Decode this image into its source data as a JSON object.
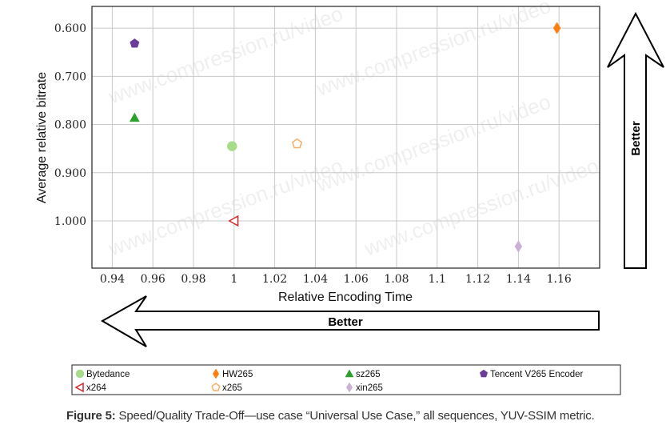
{
  "chart_data": {
    "type": "scatter",
    "xlabel": "Relative Encoding Time",
    "ylabel": "Average relative bitrate",
    "xlim": [
      0.93,
      1.18
    ],
    "ylim": [
      0.555,
      1.098
    ],
    "y_inverted": true,
    "grid": true,
    "x_ticks": [
      "0.94",
      "0.96",
      "0.98",
      "1",
      "1.02",
      "1.04",
      "1.06",
      "1.08",
      "1.1",
      "1.12",
      "1.14",
      "1.16"
    ],
    "x_tick_values": [
      0.94,
      0.96,
      0.98,
      1,
      1.02,
      1.04,
      1.06,
      1.08,
      1.1,
      1.12,
      1.14,
      1.16
    ],
    "y_ticks": [
      "0.600",
      "0.700",
      "0.800",
      "0.900",
      "1.000"
    ],
    "y_tick_values": [
      0.6,
      0.7,
      0.8,
      0.9,
      1.0
    ],
    "legend_placement": "bottom",
    "series": [
      {
        "name": "Bytedance",
        "marker": "circle",
        "color": "#a6dc8a",
        "filled": true,
        "x": 0.999,
        "y": 0.845
      },
      {
        "name": "HW265",
        "marker": "diamond",
        "color": "#ff7f0e",
        "filled": true,
        "x": 1.159,
        "y": 0.6
      },
      {
        "name": "sz265",
        "marker": "triangle-up",
        "color": "#2ca02c",
        "filled": true,
        "x": 0.951,
        "y": 0.786
      },
      {
        "name": "Tencent V265 Encoder",
        "marker": "pentagon",
        "color": "#6a3d9a",
        "filled": true,
        "x": 0.951,
        "y": 0.632
      },
      {
        "name": "x264",
        "marker": "triangle-left",
        "color": "#d62728",
        "filled": false,
        "x": 1.0,
        "y": 1.0
      },
      {
        "name": "x265",
        "marker": "pentagon",
        "color": "#fdae61",
        "filled": false,
        "x": 1.031,
        "y": 0.84
      },
      {
        "name": "xin265",
        "marker": "diamond",
        "color": "#cab2d6",
        "filled": true,
        "x": 1.14,
        "y": 1.053
      }
    ],
    "annotations": {
      "horizontal_arrow": "Better",
      "vertical_arrow": "Better"
    }
  },
  "watermark": "www.compression.ru/video",
  "caption": {
    "label": "Figure 5:",
    "text": " Speed/Quality Trade-Off—use case “Universal Use Case,” all sequences, YUV-SSIM metric."
  }
}
